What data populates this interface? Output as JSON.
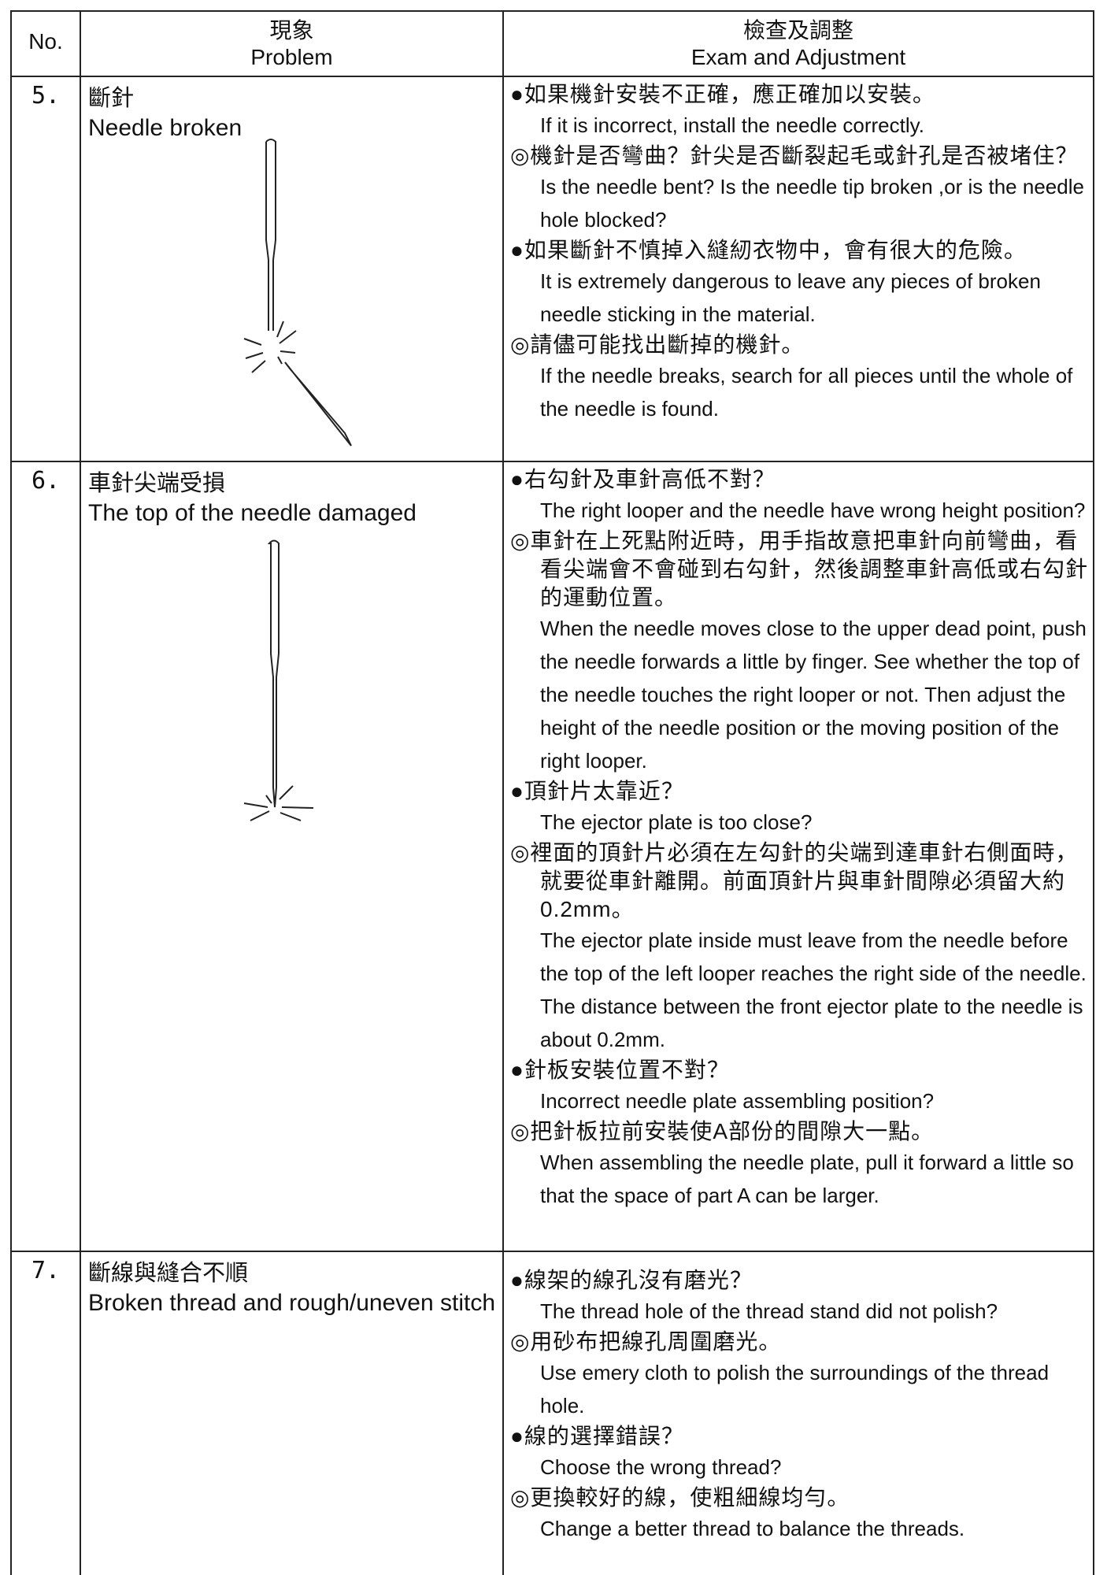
{
  "header": {
    "no": "No.",
    "problem_zh": "現象",
    "problem_en": "Problem",
    "exam_zh": "檢查及調整",
    "exam_en": "Exam and Adjustment"
  },
  "rows": [
    {
      "no": "5.",
      "problem_zh": "斷針",
      "problem_en": "Needle broken",
      "items": [
        {
          "zh": "●如果機針安裝不正確，應正確加以安裝。",
          "en": "If it is incorrect, install the needle correctly."
        },
        {
          "zh": "◎機針是否彎曲？針尖是否斷裂起毛或針孔是否被堵住？",
          "en": "Is the needle bent? Is the needle tip broken ,or is the needle hole blocked?"
        },
        {
          "zh": "●如果斷針不慎掉入縫紉衣物中，會有很大的危險。",
          "en": "It is extremely dangerous to leave any pieces of broken needle sticking in the material."
        },
        {
          "zh": "◎請儘可能找出斷掉的機針。",
          "en": "If the needle breaks, search for all pieces until the whole of the needle is found."
        }
      ]
    },
    {
      "no": "6.",
      "problem_zh": "車針尖端受損",
      "problem_en": "The top of the needle damaged",
      "items": [
        {
          "zh": "●右勾針及車針高低不對？",
          "en": "The right looper and the needle have wrong height position?"
        },
        {
          "zh": "◎車針在上死點附近時，用手指故意把車針向前彎曲，看看尖端會不會碰到右勾針，然後調整車針高低或右勾針的運動位置。",
          "en": "When the needle moves close to the upper dead point, push the needle forwards a little by finger. See whether the top of the needle touches the right looper or not. Then adjust the height of the needle position or the moving position of the right looper."
        },
        {
          "zh": "●頂針片太靠近？",
          "en": "The ejector plate is too close?"
        },
        {
          "zh": "◎裡面的頂針片必須在左勾針的尖端到達車針右側面時，就要從車針離開。前面頂針片與車針間隙必須留大約0.2mm。",
          "en": "The ejector plate inside must leave from the needle before the top of the left looper reaches the right side of the needle. The distance between the front ejector plate to the needle is about 0.2mm."
        },
        {
          "zh": "●針板安裝位置不對？",
          "en": "Incorrect needle plate assembling position?"
        },
        {
          "zh": "◎把針板拉前安裝使A部份的間隙大一點。",
          "en": "When assembling the needle plate, pull it forward a little so that the space of part A can be larger."
        }
      ]
    },
    {
      "no": "7.",
      "problem_zh": "斷線與縫合不順",
      "problem_en": "Broken thread and rough/uneven stitch",
      "items": [
        {
          "zh": "●線架的線孔沒有磨光？",
          "en": "The thread hole of the thread stand did not polish?"
        },
        {
          "zh": "◎用砂布把線孔周圍磨光。",
          "en": "Use emery cloth to polish the surroundings of the thread hole."
        },
        {
          "zh": "●線的選擇錯誤？",
          "en": "Choose the wrong thread?"
        },
        {
          "zh": "◎更換較好的線，使粗細線均勻。",
          "en": "Change a better thread to balance the threads."
        }
      ]
    }
  ]
}
